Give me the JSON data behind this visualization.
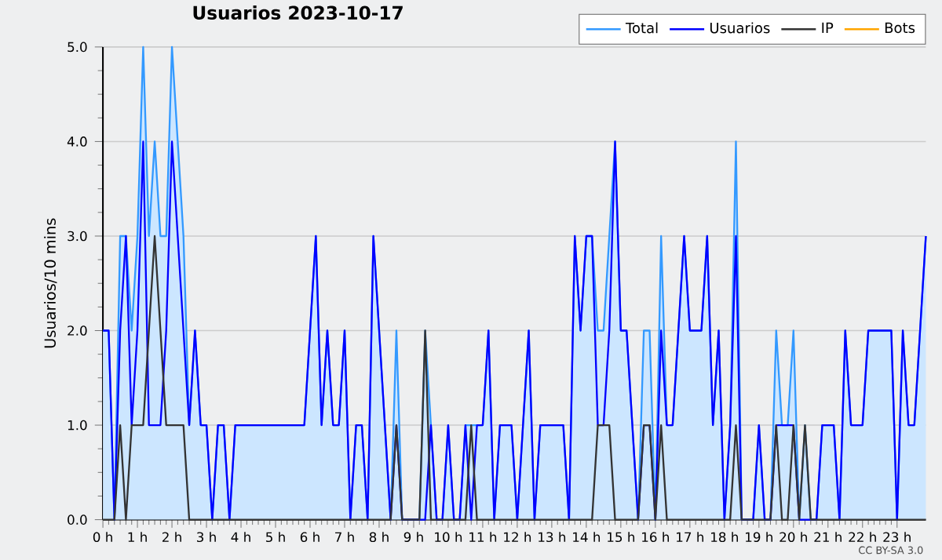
{
  "chart_data": {
    "type": "line",
    "title": "Usuarios  2023-10-17",
    "ylabel": "Usuarios/10 mins",
    "annotations": [
      "CC BY-SA 3.0"
    ],
    "x": [
      0,
      0.1667,
      0.3333,
      0.5,
      0.6667,
      0.8333,
      1,
      1.1667,
      1.3333,
      1.5,
      1.6667,
      1.8333,
      2,
      2.1667,
      2.3333,
      2.5,
      2.6667,
      2.8333,
      3,
      3.1667,
      3.3333,
      3.5,
      3.6667,
      3.8333,
      4,
      4.1667,
      4.3333,
      4.5,
      4.6667,
      4.8333,
      5,
      5.1667,
      5.3333,
      5.5,
      5.6667,
      5.8333,
      6,
      6.1667,
      6.3333,
      6.5,
      6.6667,
      6.8333,
      7,
      7.1667,
      7.3333,
      7.5,
      7.6667,
      7.8333,
      8,
      8.1667,
      8.3333,
      8.5,
      8.6667,
      8.8333,
      9,
      9.1667,
      9.3333,
      9.5,
      9.6667,
      9.8333,
      10,
      10.1667,
      10.3333,
      10.5,
      10.6667,
      10.8333,
      11,
      11.1667,
      11.3333,
      11.5,
      11.6667,
      11.8333,
      12,
      12.1667,
      12.3333,
      12.5,
      12.6667,
      12.8333,
      13,
      13.1667,
      13.3333,
      13.5,
      13.6667,
      13.8333,
      14,
      14.1667,
      14.3333,
      14.5,
      14.6667,
      14.8333,
      15,
      15.1667,
      15.3333,
      15.5,
      15.6667,
      15.8333,
      16,
      16.1667,
      16.3333,
      16.5,
      16.6667,
      16.8333,
      17,
      17.1667,
      17.3333,
      17.5,
      17.6667,
      17.8333,
      18,
      18.1667,
      18.3333,
      18.5,
      18.6667,
      18.8333,
      19,
      19.1667,
      19.3333,
      19.5,
      19.6667,
      19.8333,
      20,
      20.1667,
      20.3333,
      20.5,
      20.6667,
      20.8333,
      21,
      21.1667,
      21.3333,
      21.5,
      21.6667,
      21.8333,
      22,
      22.1667,
      22.3333,
      22.5,
      22.6667,
      22.8333,
      23,
      23.1667,
      23.3333,
      23.5,
      23.6667,
      23.8333
    ],
    "series": [
      {
        "name": "Total",
        "type": "area",
        "color": "#3399ff",
        "values": [
          2,
          2,
          0,
          3,
          3,
          2,
          3,
          5,
          3,
          4,
          3,
          3,
          5,
          4,
          3,
          1,
          2,
          1,
          1,
          0,
          1,
          1,
          0,
          1,
          1,
          1,
          1,
          1,
          1,
          1,
          1,
          1,
          1,
          1,
          1,
          1,
          2,
          3,
          1,
          2,
          1,
          1,
          2,
          0,
          1,
          1,
          0,
          3,
          2,
          1,
          0,
          2,
          0,
          0,
          0,
          0,
          2,
          1,
          0,
          0,
          1,
          0,
          0,
          1,
          1,
          1,
          1,
          2,
          0,
          1,
          1,
          1,
          0,
          1,
          2,
          0,
          1,
          1,
          1,
          1,
          1,
          0,
          3,
          2,
          3,
          3,
          2,
          2,
          3,
          4,
          2,
          2,
          1,
          0,
          2,
          2,
          0,
          3,
          1,
          1,
          2,
          3,
          2,
          2,
          2,
          3,
          1,
          2,
          0,
          1,
          4,
          0,
          0,
          0,
          1,
          0,
          0,
          2,
          1,
          1,
          2,
          0,
          1,
          0,
          0,
          1,
          1,
          1,
          0,
          2,
          1,
          1,
          1,
          2,
          2,
          2,
          2,
          2,
          0,
          2,
          1,
          1,
          2,
          3
        ]
      },
      {
        "name": "Usuarios",
        "type": "line",
        "color": "#0000ff",
        "values": [
          2,
          2,
          0,
          2,
          3,
          1,
          2,
          4,
          1,
          1,
          1,
          2,
          4,
          3,
          2,
          1,
          2,
          1,
          1,
          0,
          1,
          1,
          0,
          1,
          1,
          1,
          1,
          1,
          1,
          1,
          1,
          1,
          1,
          1,
          1,
          1,
          2,
          3,
          1,
          2,
          1,
          1,
          2,
          0,
          1,
          1,
          0,
          3,
          2,
          1,
          0,
          1,
          0,
          0,
          0,
          0,
          0,
          1,
          0,
          0,
          1,
          0,
          0,
          1,
          0,
          1,
          1,
          2,
          0,
          1,
          1,
          1,
          0,
          1,
          2,
          0,
          1,
          1,
          1,
          1,
          1,
          0,
          3,
          2,
          3,
          3,
          1,
          1,
          2,
          4,
          2,
          2,
          1,
          0,
          1,
          1,
          0,
          2,
          1,
          1,
          2,
          3,
          2,
          2,
          2,
          3,
          1,
          2,
          0,
          1,
          3,
          0,
          0,
          0,
          1,
          0,
          0,
          1,
          1,
          1,
          1,
          0,
          0,
          0,
          0,
          1,
          1,
          1,
          0,
          2,
          1,
          1,
          1,
          2,
          2,
          2,
          2,
          2,
          0,
          2,
          1,
          1,
          2,
          3
        ]
      },
      {
        "name": "IP",
        "type": "line",
        "color": "#333333",
        "values": [
          0,
          0,
          0,
          1,
          0,
          1,
          1,
          1,
          2,
          3,
          2,
          1,
          1,
          1,
          1,
          0,
          0,
          0,
          0,
          0,
          0,
          0,
          0,
          0,
          0,
          0,
          0,
          0,
          0,
          0,
          0,
          0,
          0,
          0,
          0,
          0,
          0,
          0,
          0,
          0,
          0,
          0,
          0,
          0,
          0,
          0,
          0,
          0,
          0,
          0,
          0,
          1,
          0,
          0,
          0,
          0,
          2,
          0,
          0,
          0,
          0,
          0,
          0,
          0,
          1,
          0,
          0,
          0,
          0,
          0,
          0,
          0,
          0,
          0,
          0,
          0,
          0,
          0,
          0,
          0,
          0,
          0,
          0,
          0,
          0,
          0,
          1,
          1,
          1,
          0,
          0,
          0,
          0,
          0,
          1,
          1,
          0,
          1,
          0,
          0,
          0,
          0,
          0,
          0,
          0,
          0,
          0,
          0,
          0,
          0,
          1,
          0,
          0,
          0,
          0,
          0,
          0,
          1,
          0,
          0,
          1,
          0,
          1,
          0,
          0,
          0,
          0,
          0,
          0,
          0,
          0,
          0,
          0,
          0,
          0,
          0,
          0,
          0,
          0,
          0,
          0,
          0,
          0,
          0
        ]
      },
      {
        "name": "Bots",
        "type": "line",
        "color": "#ffa500",
        "values": [
          null,
          null,
          null,
          null,
          null,
          null,
          null,
          null,
          null,
          null,
          null,
          null,
          null,
          null,
          null,
          null,
          null,
          null,
          null,
          null,
          null,
          null,
          null,
          null,
          null,
          null,
          null,
          null,
          null,
          null,
          null,
          null,
          null,
          null,
          null,
          null,
          null,
          null,
          null,
          null,
          null,
          null,
          null,
          null,
          null,
          null,
          null,
          null,
          null,
          null,
          null,
          null,
          null,
          null,
          null,
          null,
          null,
          null,
          null,
          null,
          null,
          null,
          null,
          null,
          null,
          null,
          null,
          null,
          null,
          null,
          null,
          null,
          null,
          null,
          null,
          null,
          null,
          null,
          null,
          null,
          null,
          null,
          null,
          null,
          null,
          null,
          null,
          null,
          null,
          null,
          null,
          null,
          null,
          null,
          null,
          null,
          null,
          null,
          null,
          null,
          null,
          null,
          null,
          null,
          null,
          null,
          null,
          null,
          null,
          null,
          null,
          null,
          null,
          null,
          null,
          null,
          null,
          null,
          null,
          null,
          null,
          null,
          null,
          null,
          null,
          null,
          null,
          null,
          null,
          null,
          null,
          null,
          null,
          null,
          null,
          null,
          null,
          null,
          null,
          null,
          null,
          null,
          null,
          null
        ]
      }
    ],
    "xlim": [
      0,
      23.8333
    ],
    "xticks": [
      {
        "value": 0,
        "label": "0 h"
      },
      {
        "value": 1,
        "label": "1 h"
      },
      {
        "value": 2,
        "label": "2 h"
      },
      {
        "value": 3,
        "label": "3 h"
      },
      {
        "value": 4,
        "label": "4 h"
      },
      {
        "value": 5,
        "label": "5 h"
      },
      {
        "value": 6,
        "label": "6 h"
      },
      {
        "value": 7,
        "label": "7 h"
      },
      {
        "value": 8,
        "label": "8 h"
      },
      {
        "value": 9,
        "label": "9 h"
      },
      {
        "value": 10,
        "label": "10 h"
      },
      {
        "value": 11,
        "label": "11 h"
      },
      {
        "value": 12,
        "label": "12 h"
      },
      {
        "value": 13,
        "label": "13 h"
      },
      {
        "value": 14,
        "label": "14 h"
      },
      {
        "value": 15,
        "label": "15 h"
      },
      {
        "value": 16,
        "label": "16 h"
      },
      {
        "value": 17,
        "label": "17 h"
      },
      {
        "value": 18,
        "label": "18 h"
      },
      {
        "value": 19,
        "label": "19 h"
      },
      {
        "value": 20,
        "label": "20 h"
      },
      {
        "value": 21,
        "label": "21 h"
      },
      {
        "value": 22,
        "label": "22 h"
      },
      {
        "value": 23,
        "label": "23 h"
      }
    ],
    "ylim": [
      0,
      5
    ],
    "yticks": [
      {
        "value": 0,
        "label": "0.0"
      },
      {
        "value": 1,
        "label": "1.0"
      },
      {
        "value": 2,
        "label": "2.0"
      },
      {
        "value": 3,
        "label": "3.0"
      },
      {
        "value": 4,
        "label": "4.0"
      },
      {
        "value": 5,
        "label": "5.0"
      }
    ],
    "grid": "y",
    "legend": "top right"
  }
}
